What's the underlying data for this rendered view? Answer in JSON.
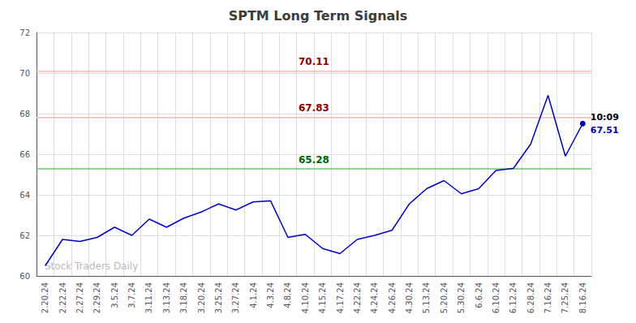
{
  "chart_data": {
    "type": "line",
    "title": "SPTM Long Term Signals",
    "categories": [
      "2.20.24",
      "2.22.24",
      "2.27.24",
      "2.29.24",
      "3.5.24",
      "3.7.24",
      "3.11.24",
      "3.13.24",
      "3.18.24",
      "3.20.24",
      "3.25.24",
      "3.27.24",
      "4.1.24",
      "4.3.24",
      "4.8.24",
      "4.10.24",
      "4.15.24",
      "4.17.24",
      "4.22.24",
      "4.24.24",
      "4.26.24",
      "4.30.24",
      "5.13.24",
      "5.20.24",
      "5.30.24",
      "6.6.24",
      "6.10.24",
      "6.12.24",
      "6.28.24",
      "7.16.24",
      "7.25.24",
      "8.16.24"
    ],
    "values": [
      60.5,
      61.8,
      61.7,
      61.9,
      62.4,
      62.0,
      62.8,
      62.4,
      62.85,
      63.15,
      63.55,
      63.25,
      63.65,
      63.7,
      61.9,
      62.05,
      61.35,
      61.1,
      61.8,
      62.0,
      62.25,
      63.55,
      64.3,
      64.7,
      64.05,
      64.3,
      65.2,
      65.3,
      66.5,
      68.9,
      65.9,
      67.51
    ],
    "color": "#0000cc",
    "hlines": [
      {
        "value": 65.28,
        "label": "65.28",
        "color": "#66cc66",
        "label_color": "#006600"
      },
      {
        "value": 67.83,
        "label": "67.83",
        "color": "#ffb3b3",
        "label_color": "#8b0000"
      },
      {
        "value": 70.11,
        "label": "70.11",
        "color": "#ffb3b3",
        "label_color": "#8b0000"
      }
    ],
    "annotations": [
      "10:09",
      "67.51"
    ],
    "watermark": "Stock Traders Daily",
    "ylim": [
      60,
      72
    ],
    "yticks": [
      60,
      62,
      64,
      66,
      68,
      70,
      72
    ],
    "grid": true
  }
}
